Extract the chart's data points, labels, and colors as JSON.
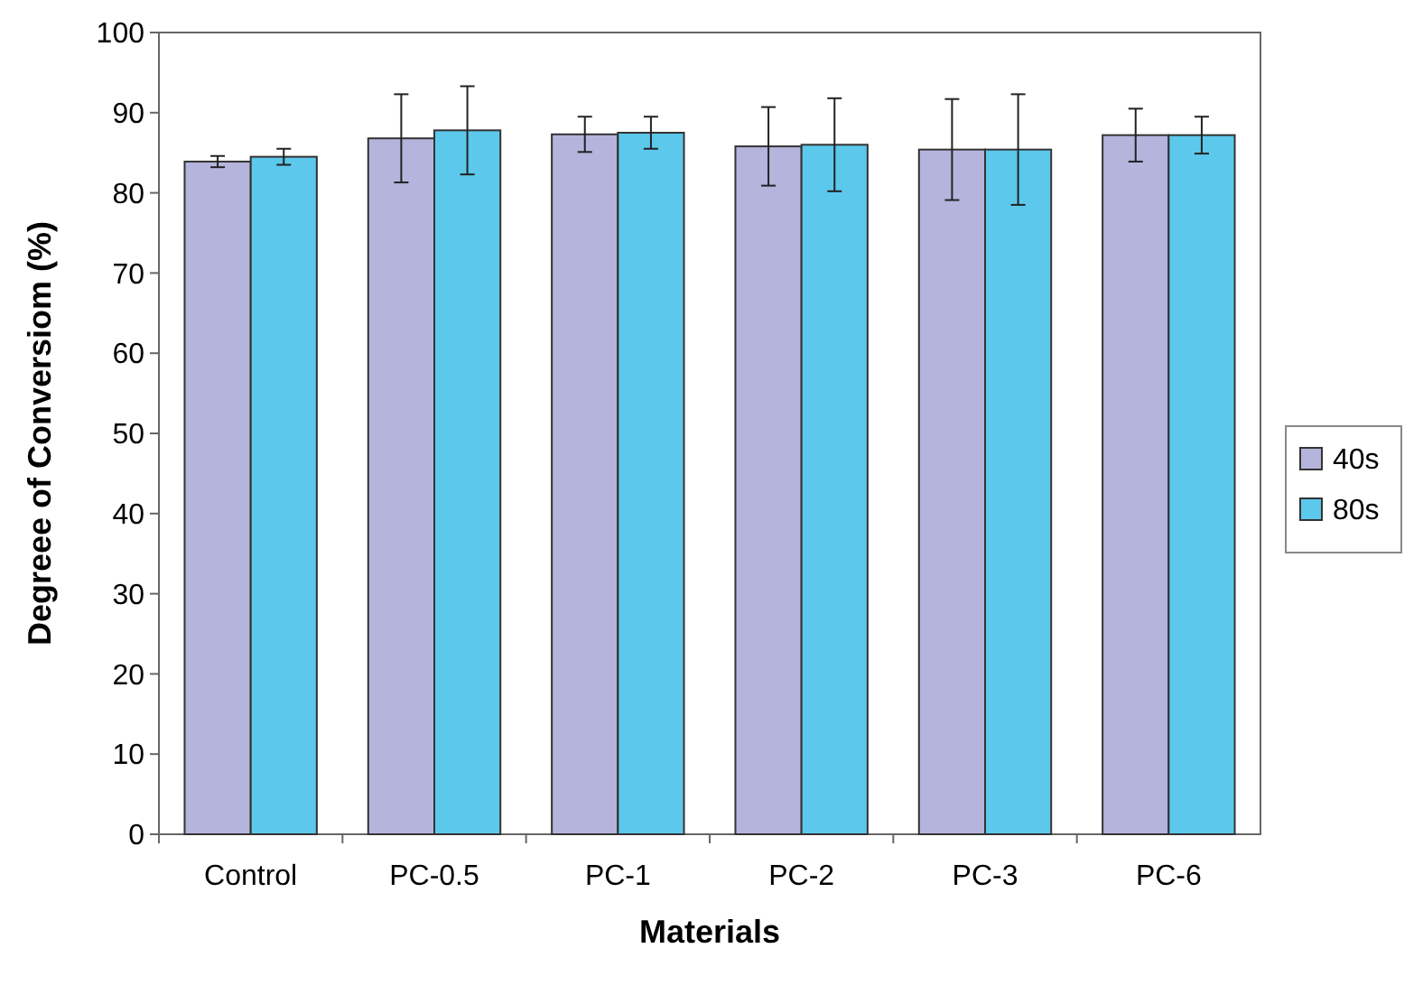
{
  "chart_data": {
    "type": "bar",
    "xlabel": "Materials",
    "ylabel": "Degreee of Conversiom (%)",
    "categories": [
      "Control",
      "PC-0.5",
      "PC-1",
      "PC-2",
      "PC-3",
      "PC-6"
    ],
    "series": [
      {
        "name": "40s",
        "color": "#b4b4dc",
        "values": [
          83.9,
          86.8,
          87.3,
          85.8,
          85.4,
          87.2
        ],
        "errors": [
          0.7,
          5.5,
          2.2,
          4.9,
          6.3,
          3.3
        ]
      },
      {
        "name": "80s",
        "color": "#5cc8ec",
        "values": [
          84.5,
          87.8,
          87.5,
          86.0,
          85.4,
          87.2
        ],
        "errors": [
          1.0,
          5.5,
          2.0,
          5.8,
          6.9,
          2.3
        ]
      }
    ],
    "ylim": [
      0,
      100
    ],
    "yticks": [
      0,
      10,
      20,
      30,
      40,
      50,
      60,
      70,
      80,
      90,
      100
    ],
    "grid": false,
    "legend": "right"
  }
}
